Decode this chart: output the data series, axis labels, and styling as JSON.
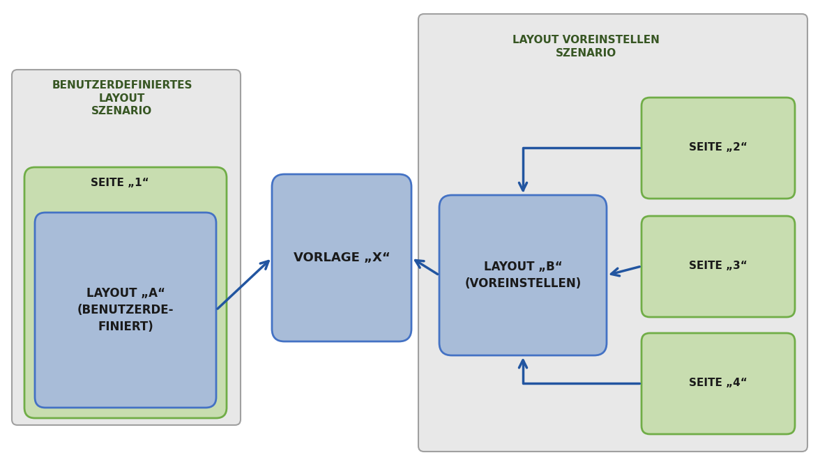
{
  "bg_color": "#ffffff",
  "gray_bg": "#e8e8e8",
  "gray_border": "#a0a0a0",
  "blue_box_color": "#a8bcd8",
  "blue_box_edge": "#4472c4",
  "green_box_color": "#c8ddb0",
  "green_box_edge": "#70ad47",
  "green_title_color": "#375623",
  "dark_text": "#1a1a1a",
  "arrow_color": "#2255a0",
  "left_scenario_title": "BENUTZERDEFINIERTES\nLAYOUT\nSZENARIO",
  "right_scenario_title": "LAYOUT VOREINSTELLEN\nSZENARIO",
  "seite1_label": "SEITE „1“",
  "layout_a_label": "LAYOUT „A“\n(BENUTZERDE-\nFINIERT)",
  "vorlage_label": "VORLAGE „X“",
  "layout_b_label": "LAYOUT „B“\n(VOREINSTELLEN)",
  "seite2_label": "SEITE „2“",
  "seite3_label": "SEITE „3“",
  "seite4_label": "SEITE „4“"
}
